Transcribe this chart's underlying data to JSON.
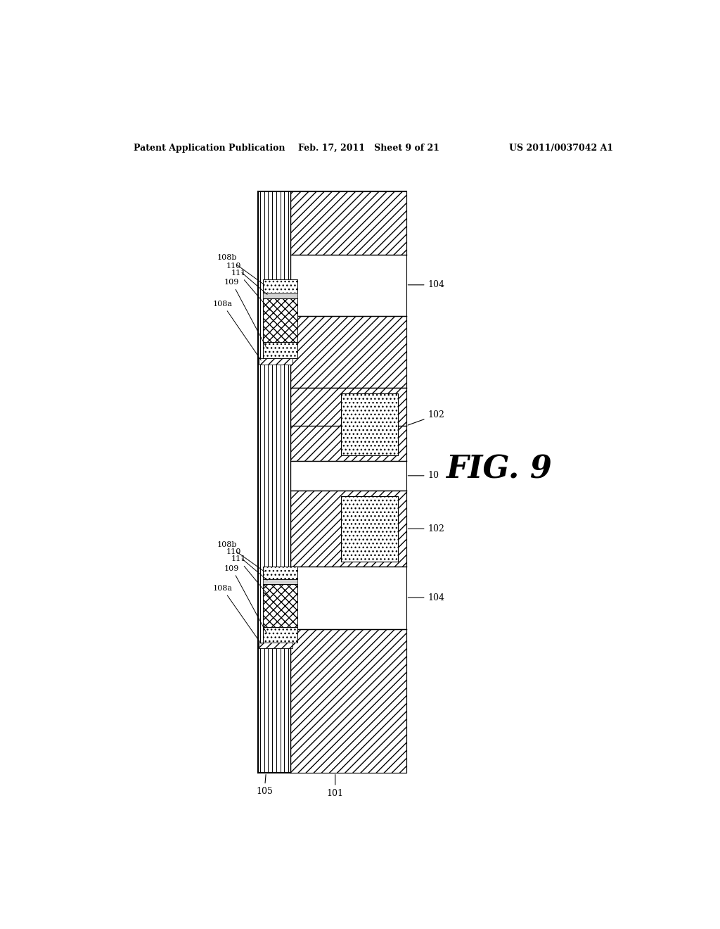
{
  "header_left": "Patent Application Publication",
  "header_center": "Feb. 17, 2011   Sheet 9 of 21",
  "header_right": "US 2011/0037042 A1",
  "fig_label": "FIG. 9",
  "background": "#ffffff"
}
